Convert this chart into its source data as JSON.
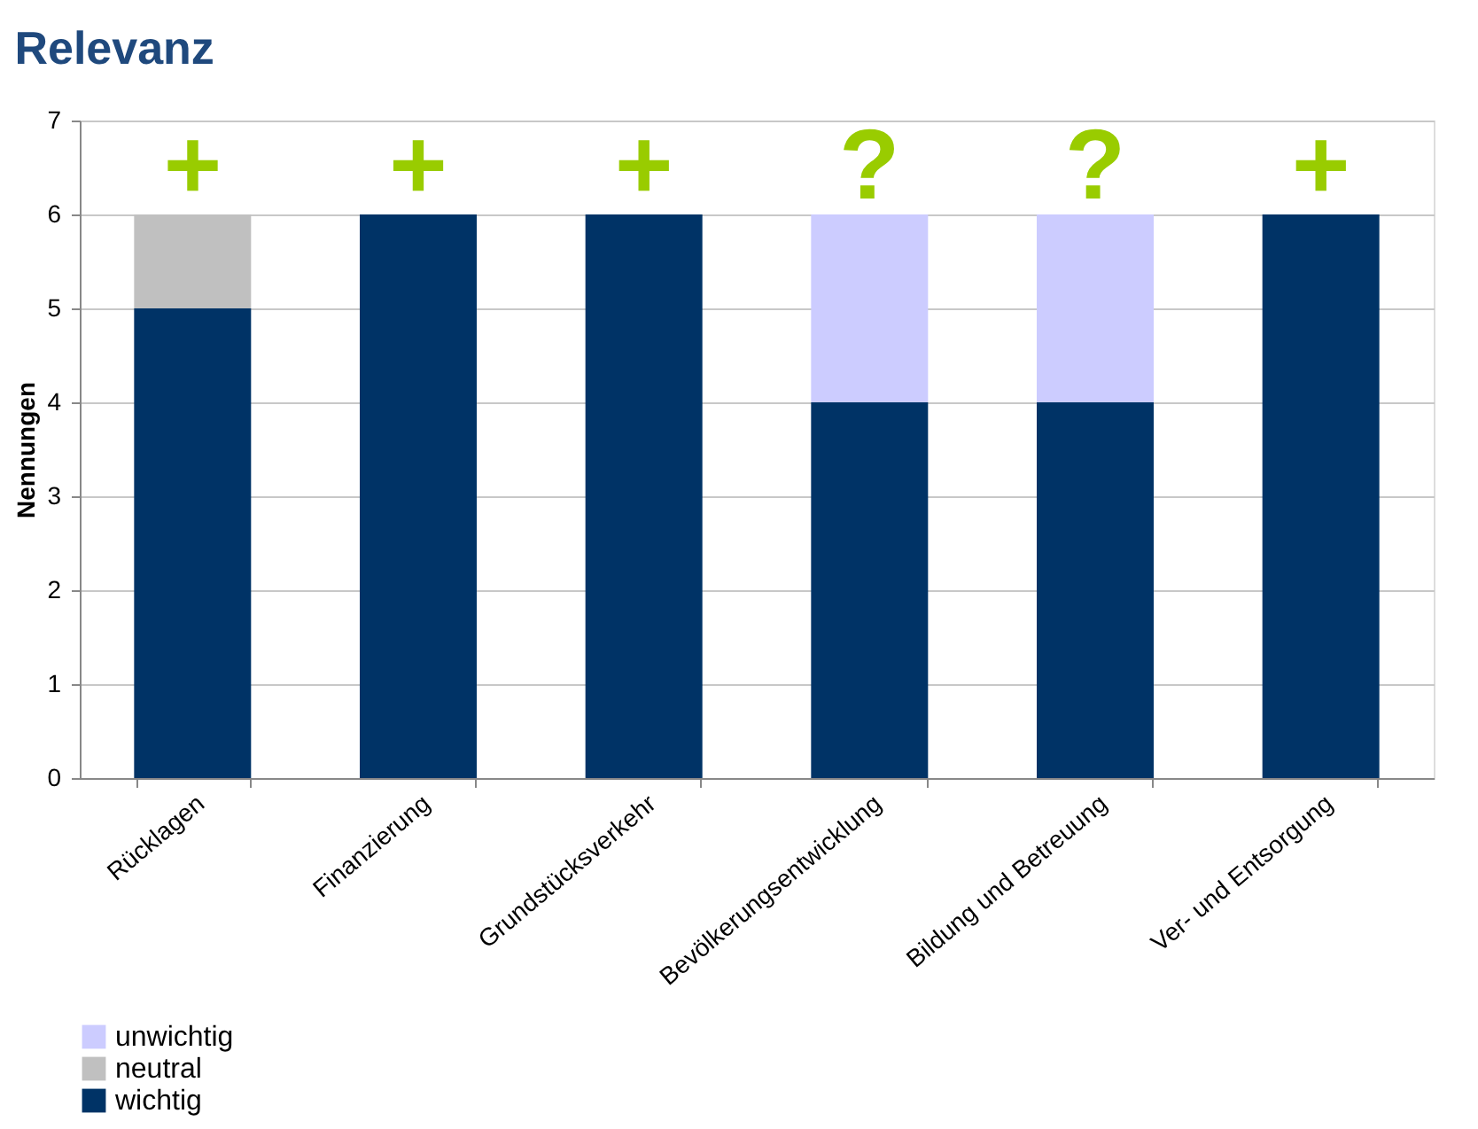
{
  "chart_data": {
    "type": "bar",
    "title": "Relevanz",
    "ylabel": "Nennungen",
    "categories": [
      "Rücklagen",
      "Finanzierung",
      "Grundstücksverkehr",
      "Bevölkerungsentwicklung",
      "Bildung und Betreuung",
      "Ver- und Entsorgung"
    ],
    "stacked": true,
    "series": [
      {
        "name": "wichtig",
        "color": "#003366",
        "values": [
          5,
          6,
          6,
          4,
          4,
          6
        ]
      },
      {
        "name": "neutral",
        "color": "#c0c0c0",
        "values": [
          1,
          null,
          null,
          null,
          null,
          null
        ]
      },
      {
        "name": "unwichtig",
        "color": "#ccccff",
        "values": [
          null,
          null,
          null,
          2,
          2,
          null
        ]
      }
    ],
    "ylim": [
      0,
      7
    ],
    "yticks": [
      0,
      1,
      2,
      3,
      4,
      5,
      6,
      7
    ],
    "grid": "y",
    "legend": "bottom left",
    "annotations": [
      "+",
      "+",
      "+",
      "?",
      "?",
      "+"
    ]
  }
}
